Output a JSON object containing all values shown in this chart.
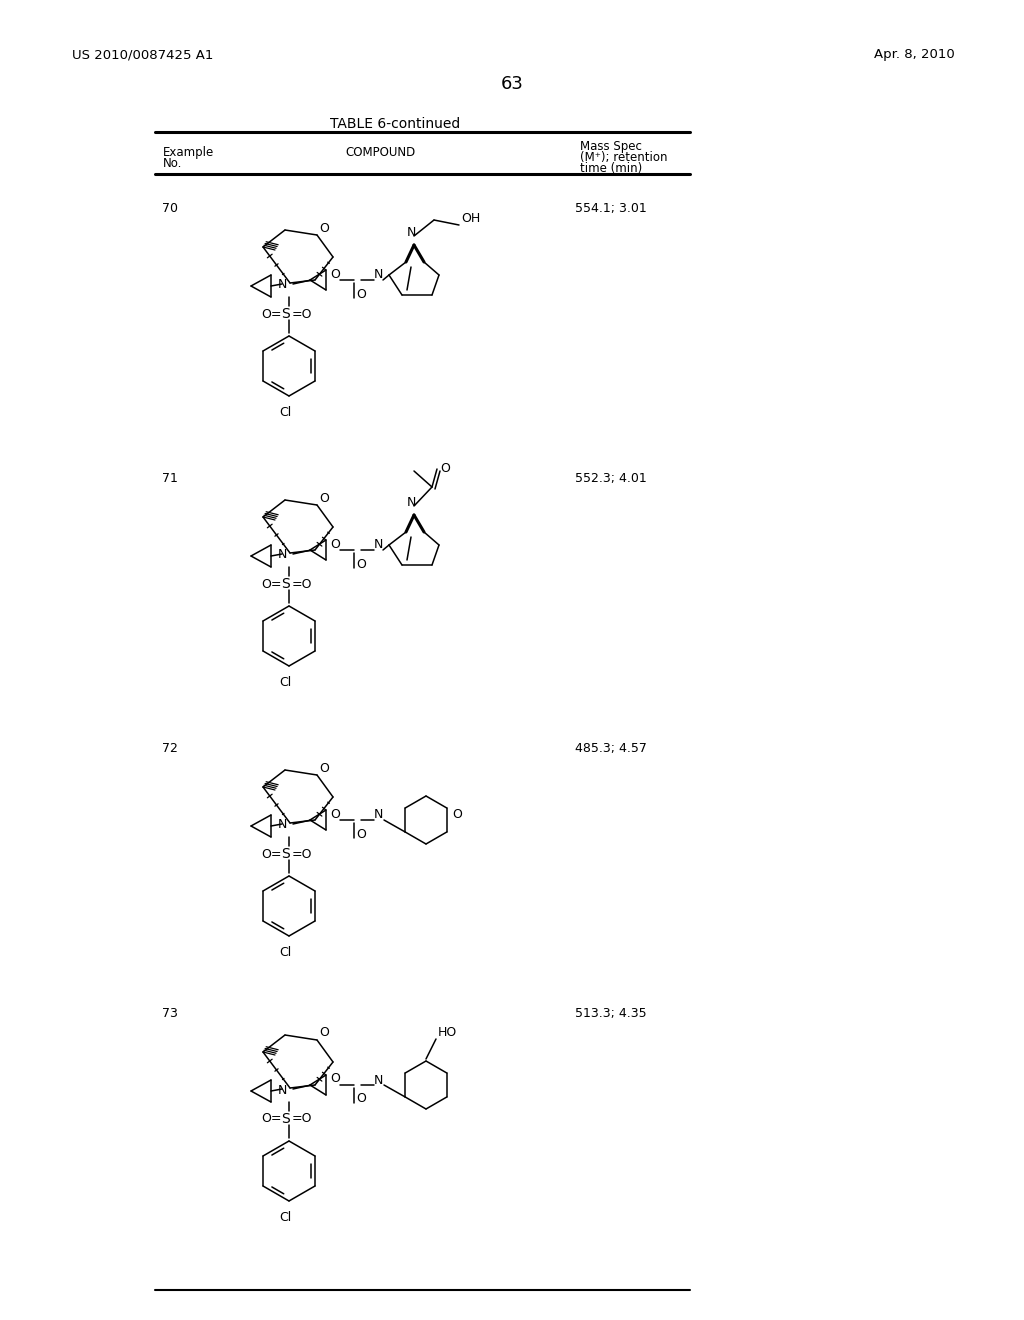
{
  "page_width": 10.24,
  "page_height": 13.2,
  "background_color": "#ffffff",
  "header_left": "US 2010/0087425 A1",
  "header_right": "Apr. 8, 2010",
  "page_number": "63",
  "table_title": "TABLE 6-continued",
  "rows": [
    {
      "example": "70",
      "mass_spec": "554.1; 3.01"
    },
    {
      "example": "71",
      "mass_spec": "552.3; 4.01"
    },
    {
      "example": "72",
      "mass_spec": "485.3; 4.57"
    },
    {
      "example": "73",
      "mass_spec": "513.3; 4.35"
    }
  ]
}
